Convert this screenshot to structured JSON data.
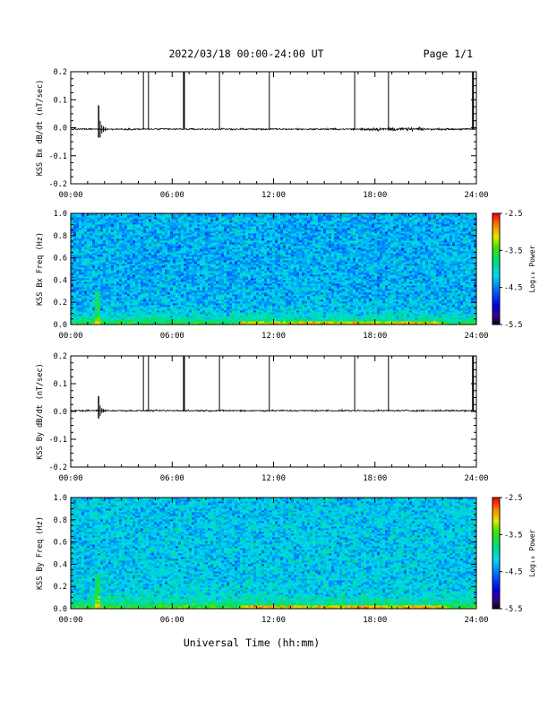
{
  "header": {
    "title": "2022/03/18  00:00-24:00 UT",
    "page": "Page 1/1"
  },
  "footer": {
    "xlabel": "Universal Time (hh:mm)"
  },
  "colors": {
    "trace": "#000000",
    "background": "#ffffff"
  },
  "chart_data": [
    {
      "type": "line",
      "ylabel": "KSS Bx dB/dt (nT/sec)",
      "xlim": [
        0,
        24
      ],
      "xticks": [
        "00:00",
        "06:00",
        "12:00",
        "18:00",
        "24:00"
      ],
      "ylim": [
        -0.2,
        0.2
      ],
      "yticks": [
        "-0.2",
        "-0.1",
        "0.0",
        "0.1",
        "0.2"
      ],
      "baseline": -0.005,
      "noise_amplitude": 0.004,
      "spikes": [
        {
          "x": 1.65,
          "min": -0.035,
          "max": 0.08
        }
      ],
      "noisy_regions": [
        {
          "x0": 17.0,
          "x1": 21.0,
          "amplitude": 0.008
        }
      ],
      "data_gaps": [
        4.3,
        4.6,
        6.7,
        8.8,
        11.75,
        16.8,
        18.8,
        23.8
      ]
    },
    {
      "type": "heatmap",
      "ylabel": "KSS Bx Freq (Hz)",
      "xlim": [
        0,
        24
      ],
      "xticks": [
        "00:00",
        "06:00",
        "12:00",
        "18:00",
        "24:00"
      ],
      "ylim": [
        0,
        1
      ],
      "yticks": [
        "0.0",
        "0.2",
        "0.4",
        "0.6",
        "0.8",
        "1.0"
      ],
      "colorbar": {
        "label": "Log₁₀ Power",
        "range": [
          -5.5,
          -2.5
        ],
        "ticks": [
          "-2.5",
          "-3.5",
          "-4.5",
          "-5.5"
        ]
      },
      "mean_log_power": -4.3,
      "low_freq_enhancement": true
    },
    {
      "type": "line",
      "ylabel": "KSS By dB/dt (nT/sec)",
      "xlim": [
        0,
        24
      ],
      "xticks": [
        "00:00",
        "06:00",
        "12:00",
        "18:00",
        "24:00"
      ],
      "ylim": [
        -0.2,
        0.2
      ],
      "yticks": [
        "-0.2",
        "-0.1",
        "0.0",
        "0.1",
        "0.2"
      ],
      "baseline": 0.003,
      "noise_amplitude": 0.004,
      "spikes": [
        {
          "x": 1.65,
          "min": -0.025,
          "max": 0.055
        }
      ],
      "noisy_regions": [],
      "data_gaps": [
        4.3,
        4.6,
        6.7,
        8.8,
        11.75,
        16.8,
        18.8,
        23.8
      ]
    },
    {
      "type": "heatmap",
      "ylabel": "KSS By Freq (Hz)",
      "xlim": [
        0,
        24
      ],
      "xticks": [
        "00:00",
        "06:00",
        "12:00",
        "18:00",
        "24:00"
      ],
      "ylim": [
        0,
        1
      ],
      "yticks": [
        "0.0",
        "0.2",
        "0.4",
        "0.6",
        "0.8",
        "1.0"
      ],
      "colorbar": {
        "label": "Log₁₀ Power",
        "range": [
          -5.5,
          -2.5
        ],
        "ticks": [
          "-2.5",
          "-3.5",
          "-4.5",
          "-5.5"
        ]
      },
      "mean_log_power": -4.2,
      "low_freq_enhancement": true
    }
  ]
}
